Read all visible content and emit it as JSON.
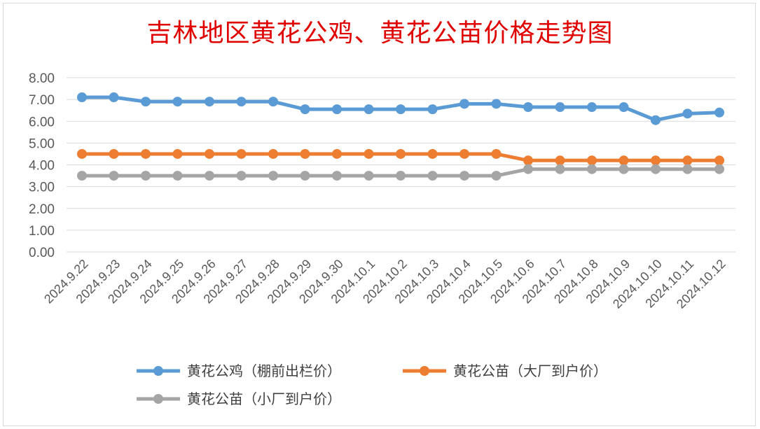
{
  "chart_data": {
    "type": "line",
    "title": "吉林地区黄花公鸡、黄花公苗价格走势图",
    "x": [
      "2024.9.22",
      "2024.9.23",
      "2024.9.24",
      "2024.9.25",
      "2024.9.26",
      "2024.9.27",
      "2024.9.28",
      "2024.9.29",
      "2024.9.30",
      "2024.10.1",
      "2024.10.2",
      "2024.10.3",
      "2024.10.4",
      "2024.10.5",
      "2024.10.6",
      "2024.10.7",
      "2024.10.8",
      "2024.10.9",
      "2024.10.10",
      "2024.10.11",
      "2024.10.12"
    ],
    "ylim": [
      0,
      8
    ],
    "yticks": [
      "0.00",
      "1.00",
      "2.00",
      "3.00",
      "4.00",
      "5.00",
      "6.00",
      "7.00",
      "8.00"
    ],
    "grid": true,
    "legend": "bottom",
    "series": [
      {
        "name": "黄花公鸡（棚前出栏价）",
        "color": "#5b9bd5",
        "values": [
          7.1,
          7.1,
          6.9,
          6.9,
          6.9,
          6.9,
          6.9,
          6.55,
          6.55,
          6.55,
          6.55,
          6.55,
          6.8,
          6.8,
          6.65,
          6.65,
          6.65,
          6.65,
          6.05,
          6.35,
          6.4
        ]
      },
      {
        "name": "黄花公苗（大厂到户价）",
        "color": "#ed7d31",
        "values": [
          4.5,
          4.5,
          4.5,
          4.5,
          4.5,
          4.5,
          4.5,
          4.5,
          4.5,
          4.5,
          4.5,
          4.5,
          4.5,
          4.5,
          4.2,
          4.2,
          4.2,
          4.2,
          4.2,
          4.2,
          4.2
        ]
      },
      {
        "name": "黄花公苗（小厂到户价）",
        "color": "#a5a5a5",
        "values": [
          3.5,
          3.5,
          3.5,
          3.5,
          3.5,
          3.5,
          3.5,
          3.5,
          3.5,
          3.5,
          3.5,
          3.5,
          3.5,
          3.5,
          3.8,
          3.8,
          3.8,
          3.8,
          3.8,
          3.8,
          3.8
        ]
      }
    ]
  }
}
